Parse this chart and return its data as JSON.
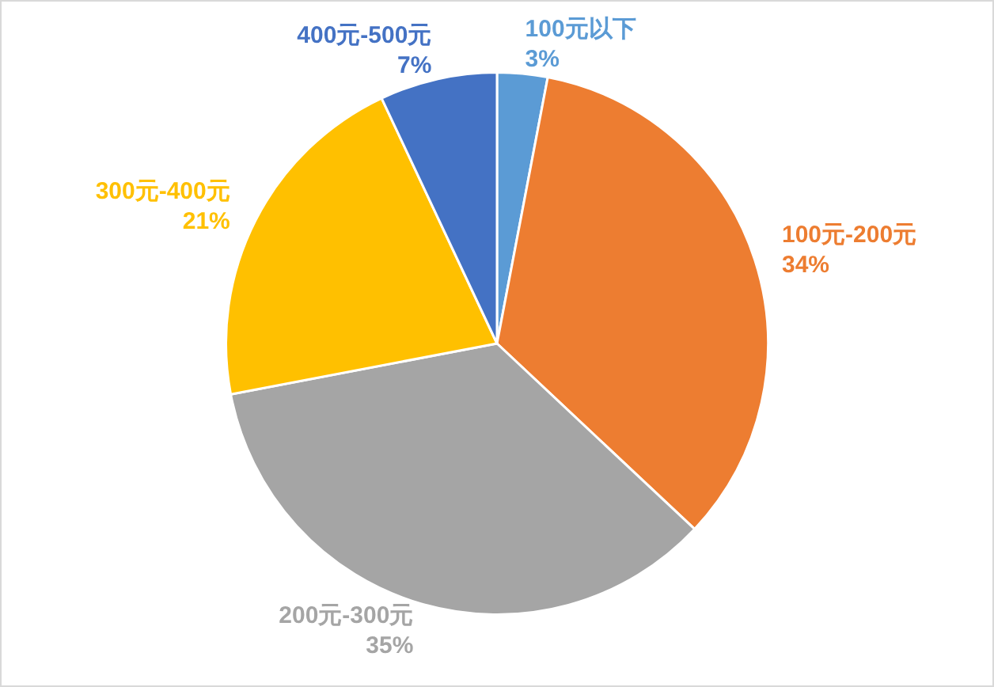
{
  "chart_data": {
    "type": "pie",
    "categories": [
      "100元以下",
      "100元-200元",
      "200元-300元",
      "300元-400元",
      "400元-500元"
    ],
    "values": [
      3,
      34,
      35,
      21,
      7
    ],
    "value_labels": [
      "3%",
      "34%",
      "35%",
      "21%",
      "7%"
    ],
    "colors": [
      "#5b9bd5",
      "#ed7d31",
      "#a5a5a5",
      "#ffc000",
      "#4472c4"
    ],
    "legend": false
  }
}
